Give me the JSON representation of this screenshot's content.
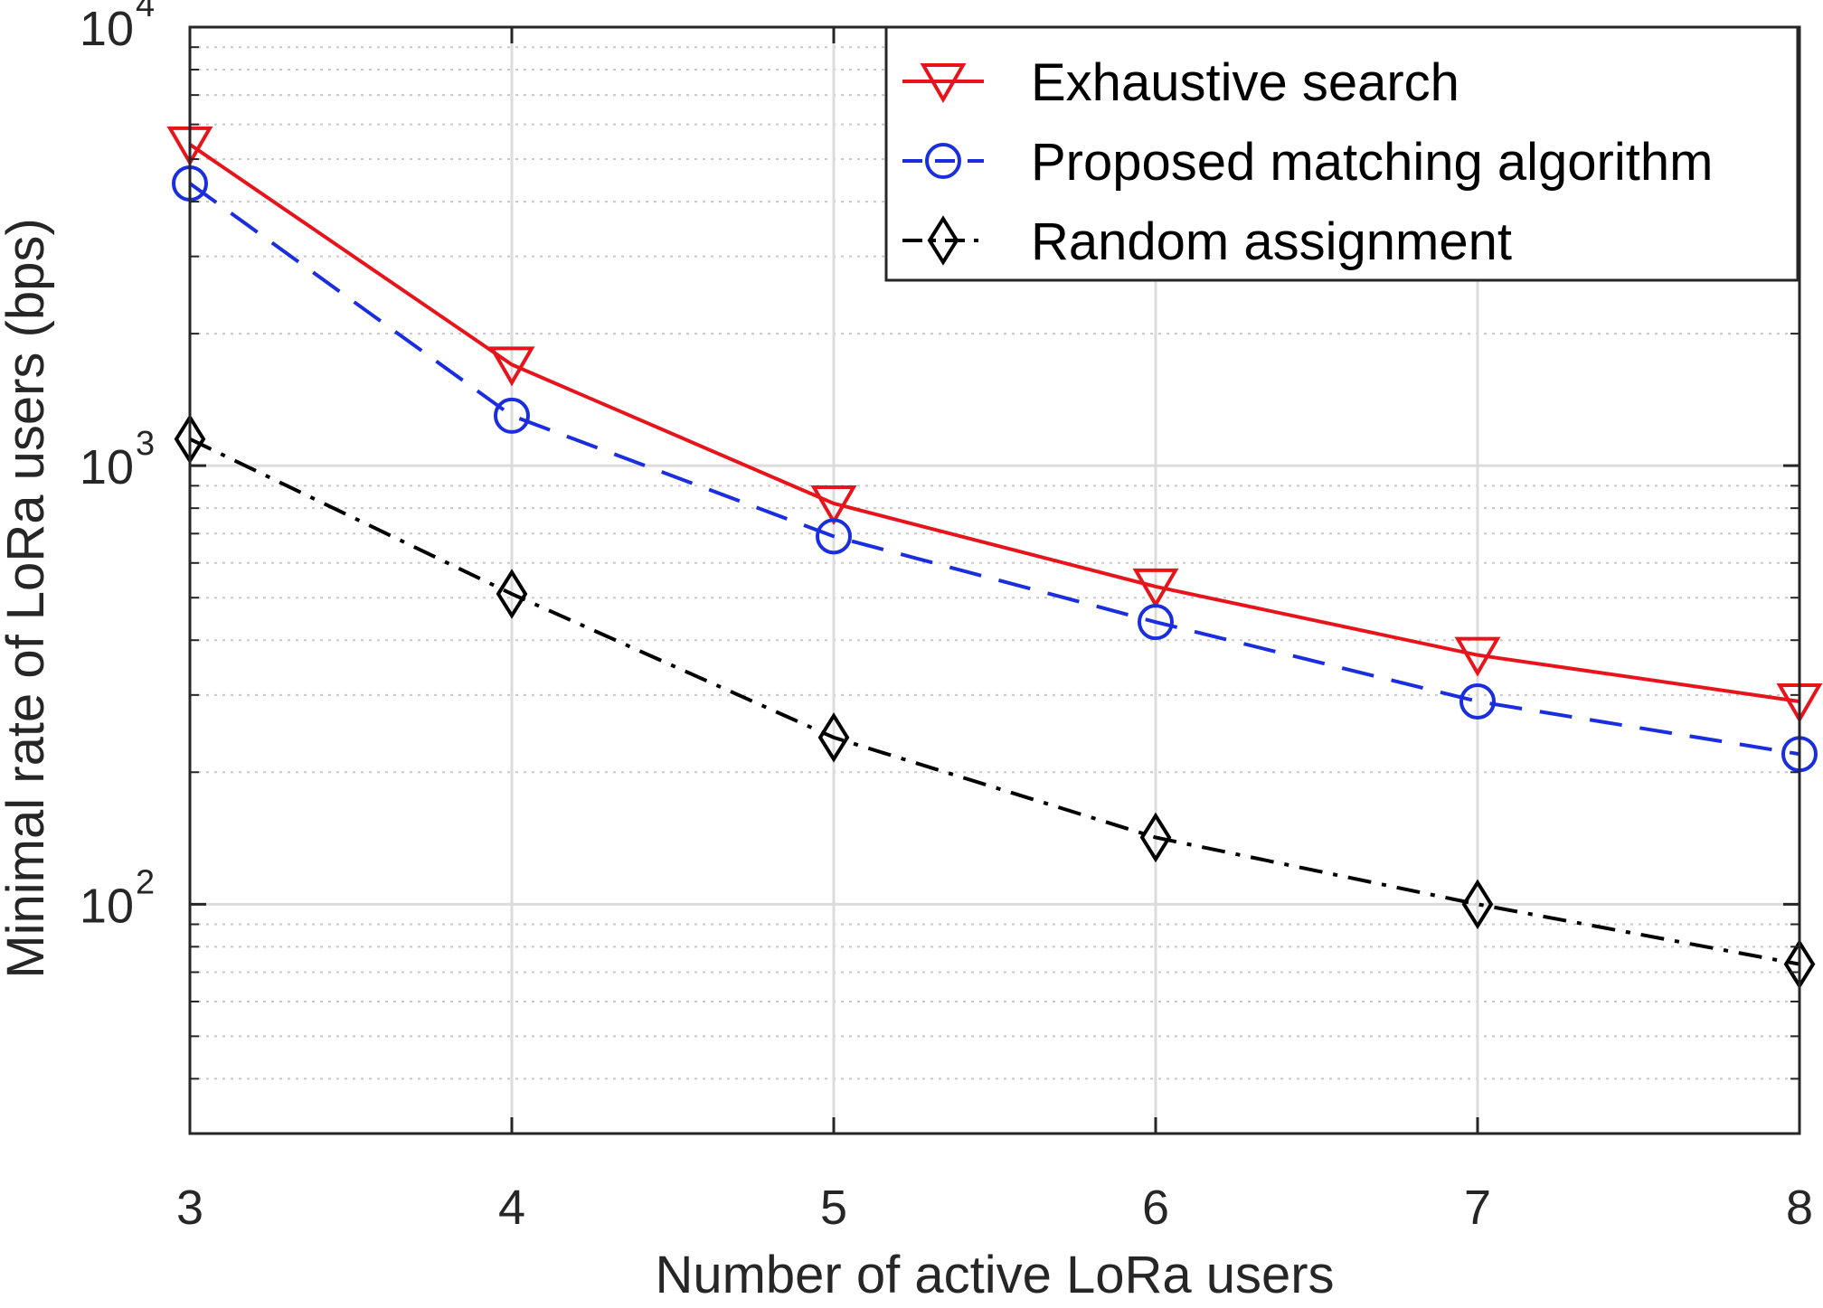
{
  "chart_data": {
    "type": "line",
    "xlabel": "Number of active LoRa users",
    "ylabel": "Minimal rate of LoRa users (bps)",
    "yscale": "log",
    "xlim": [
      3,
      8
    ],
    "ylim": [
      30,
      10000
    ],
    "x": [
      3,
      4,
      5,
      6,
      7,
      8
    ],
    "x_ticks": [
      "3",
      "4",
      "5",
      "6",
      "7",
      "8"
    ],
    "y_ticks": [
      {
        "base": "10",
        "exp": "2",
        "value": 100
      },
      {
        "base": "10",
        "exp": "3",
        "value": 1000
      },
      {
        "base": "10",
        "exp": "4",
        "value": 10000
      }
    ],
    "grid": true,
    "minor_grid": true,
    "legend_position": "top-right",
    "series": [
      {
        "name": "Exhaustive search",
        "values": [
          5400,
          1700,
          820,
          530,
          370,
          290
        ],
        "color": "#e8141b",
        "line_style": "solid",
        "marker": "triangle-down"
      },
      {
        "name": "Proposed matching algorithm",
        "values": [
          4400,
          1300,
          690,
          440,
          290,
          220
        ],
        "color": "#1a2ee0",
        "line_style": "dashed",
        "marker": "circle"
      },
      {
        "name": "Random assignment",
        "values": [
          1150,
          510,
          240,
          142,
          100,
          73
        ],
        "color": "#000000",
        "line_style": "dash-dot",
        "marker": "diamond"
      }
    ]
  }
}
